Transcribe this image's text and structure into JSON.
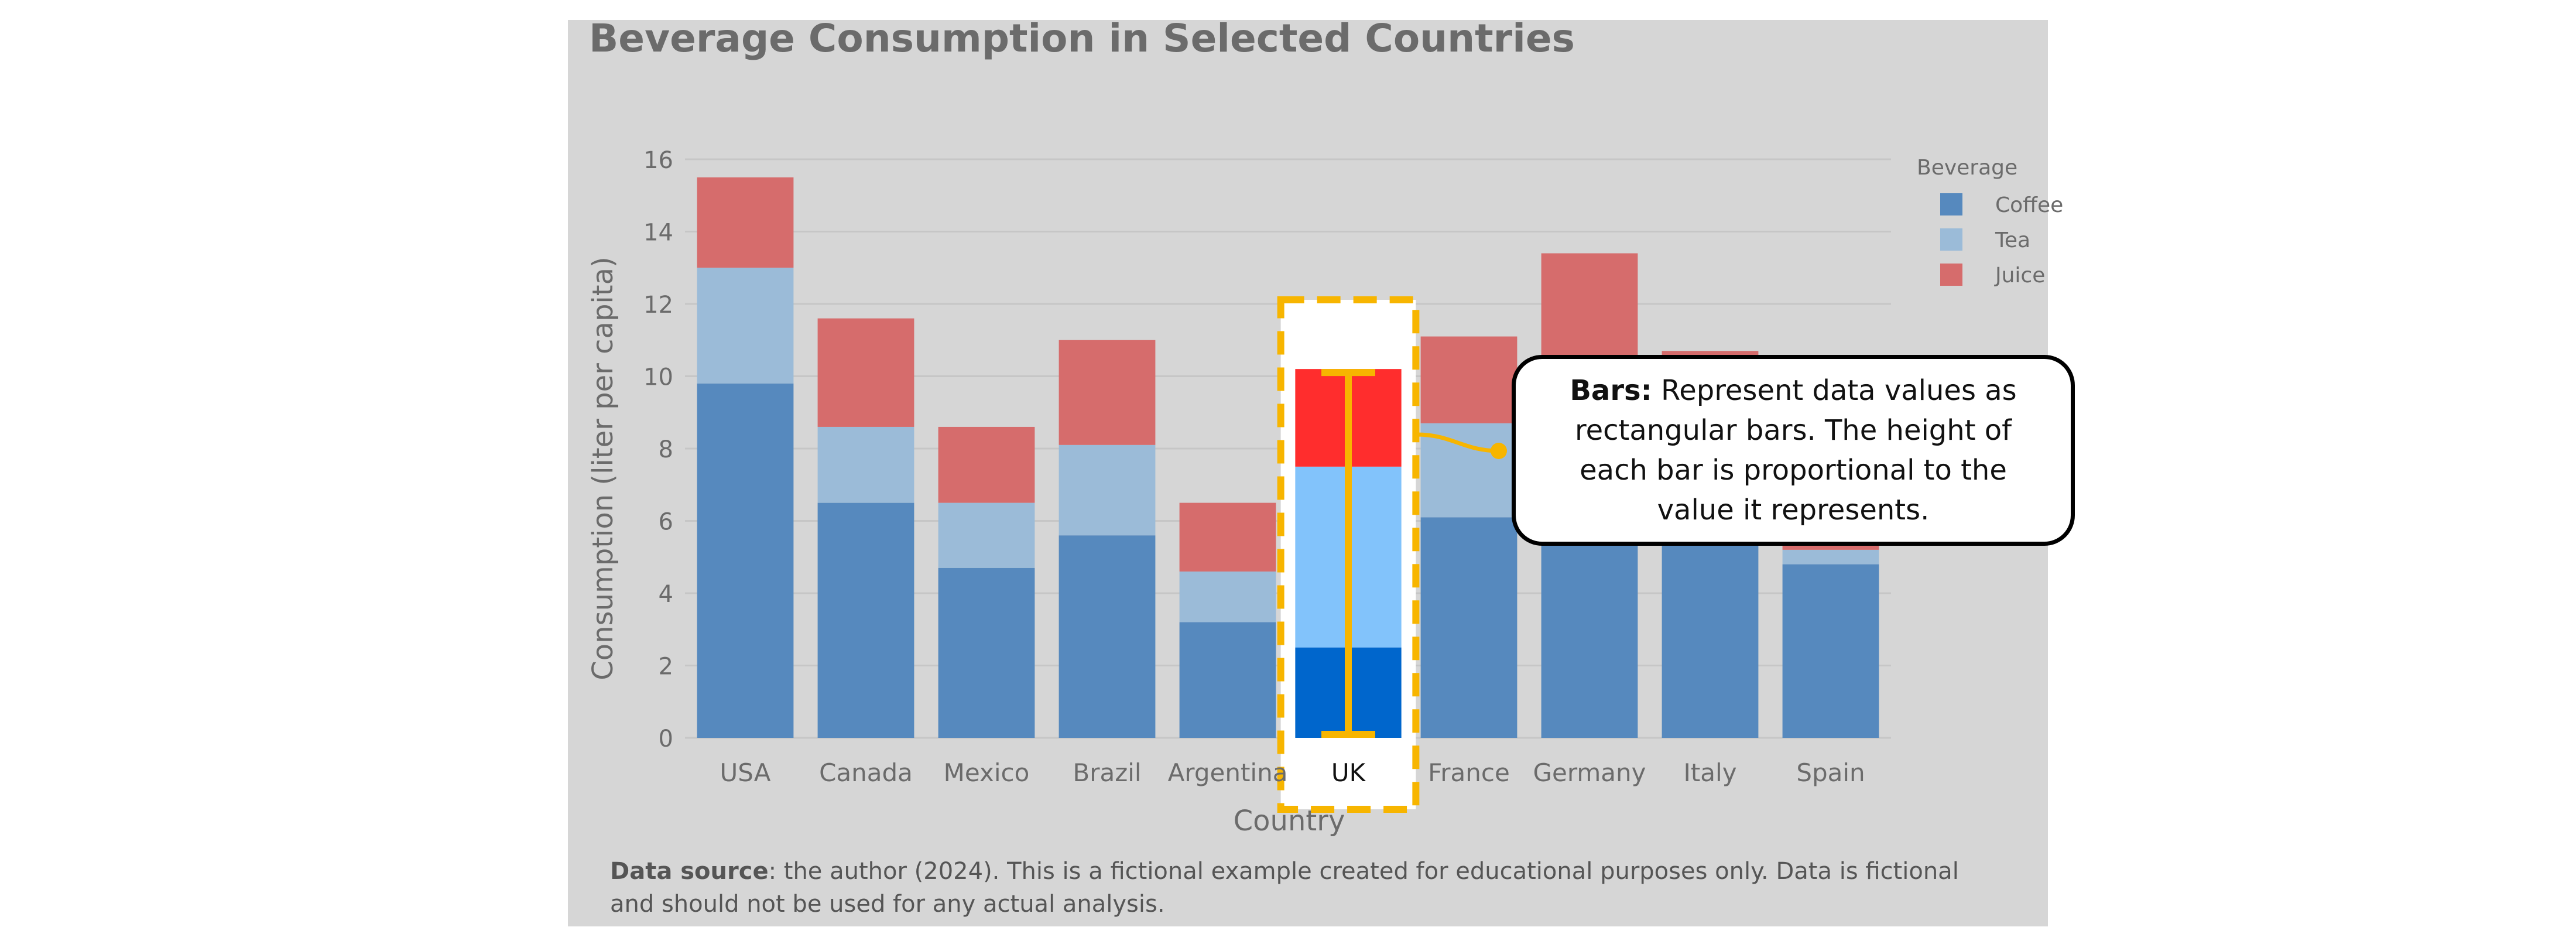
{
  "chart_data": {
    "type": "bar",
    "stacked": true,
    "title": "Beverage Consumption in Selected Countries",
    "xlabel": "Country",
    "ylabel": "Consumption (liter per capita)",
    "ylim": [
      0,
      16
    ],
    "yticks": [
      0,
      2,
      4,
      6,
      8,
      10,
      12,
      14,
      16
    ],
    "grid": true,
    "legend": {
      "title": "Beverage",
      "placement": "top-right"
    },
    "categories": [
      "USA",
      "Canada",
      "Mexico",
      "Brazil",
      "Argentina",
      "UK",
      "France",
      "Germany",
      "Italy",
      "Spain"
    ],
    "highlighted_category": "UK",
    "series": [
      {
        "name": "Coffee",
        "color": "#5689be",
        "highlight_color": "#0066cc",
        "values": [
          9.8,
          6.5,
          4.7,
          5.6,
          3.2,
          2.5,
          6.1,
          6.5,
          5.5,
          4.8
        ]
      },
      {
        "name": "Tea",
        "color": "#9bbbd8",
        "highlight_color": "#82c3fb",
        "values": [
          3.2,
          2.1,
          1.8,
          2.5,
          1.4,
          5.0,
          2.6,
          2.5,
          2.3,
          0.4
        ]
      },
      {
        "name": "Juice",
        "color": "#d66c6c",
        "highlight_color": "#ff2d2d",
        "values": [
          2.5,
          3.0,
          2.1,
          2.9,
          1.9,
          2.7,
          2.4,
          4.4,
          2.9,
          3.0
        ]
      }
    ]
  },
  "annotation": {
    "bold": "Bars:",
    "text": " Represent data values as rectangular bars. The height of each bar is proportional to the value it represents."
  },
  "source": {
    "bold": "Data source",
    "text": ": the author (2024). This is a fictional example created for educational purposes only. Data is fictional and should not be used for any actual analysis."
  },
  "colors": {
    "panel_background": "#d6d6d6",
    "highlight_frame": "#f7b500",
    "text": "#6b6b6b"
  }
}
